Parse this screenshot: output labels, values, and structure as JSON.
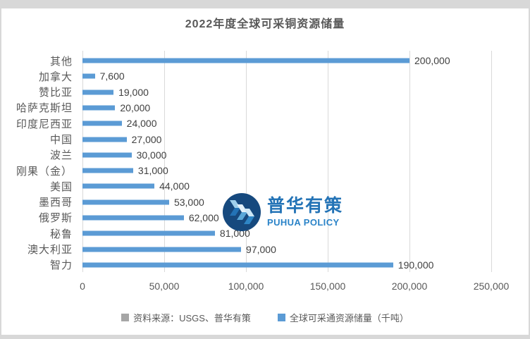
{
  "title": "2022年度全球可采铜资源储量",
  "watermark": {
    "cn": "普华有策",
    "en": "PUHUA POLICY"
  },
  "legend": [
    {
      "label": "资料来源：USGS、普华有策",
      "color": "#a6a6a6"
    },
    {
      "label": "全球可采通资源储量（千吨）",
      "color": "#5b9bd5"
    }
  ],
  "colors": {
    "bar": "#5b9bd5",
    "gridline": "#d9d9d9",
    "title_text": "#595959",
    "axis_text": "#595959",
    "value_text": "#404040",
    "watermark_blue": "#2373b6",
    "watermark_circle": "#16497e"
  },
  "chart_data": {
    "type": "bar",
    "orientation": "horizontal",
    "title": "2022年度全球可采铜资源储量",
    "xlabel": "",
    "ylabel": "",
    "categories": [
      "其他",
      "加拿大",
      "赞比亚",
      "哈萨克斯坦",
      "印度尼西亚",
      "中国",
      "波兰",
      "刚果（金）",
      "美国",
      "墨西哥",
      "俄罗斯",
      "秘鲁",
      "澳大利亚",
      "智力"
    ],
    "values": [
      200000,
      7600,
      19000,
      20000,
      24000,
      27000,
      30000,
      31000,
      44000,
      53000,
      62000,
      81000,
      97000,
      190000
    ],
    "value_labels": [
      "200,000",
      "7,600",
      "19,000",
      "20,000",
      "24,000",
      "27,000",
      "30,000",
      "31,000",
      "44,000",
      "53,000",
      "62,000",
      "81,000",
      "97,000",
      "190,000"
    ],
    "series_name": "全球可采通资源储量（千吨）",
    "xlim": [
      0,
      250000
    ],
    "x_ticks": [
      "0",
      "50,000",
      "100,000",
      "150,000",
      "200,000",
      "250,000"
    ],
    "grid": true,
    "legend_position": "bottom"
  }
}
